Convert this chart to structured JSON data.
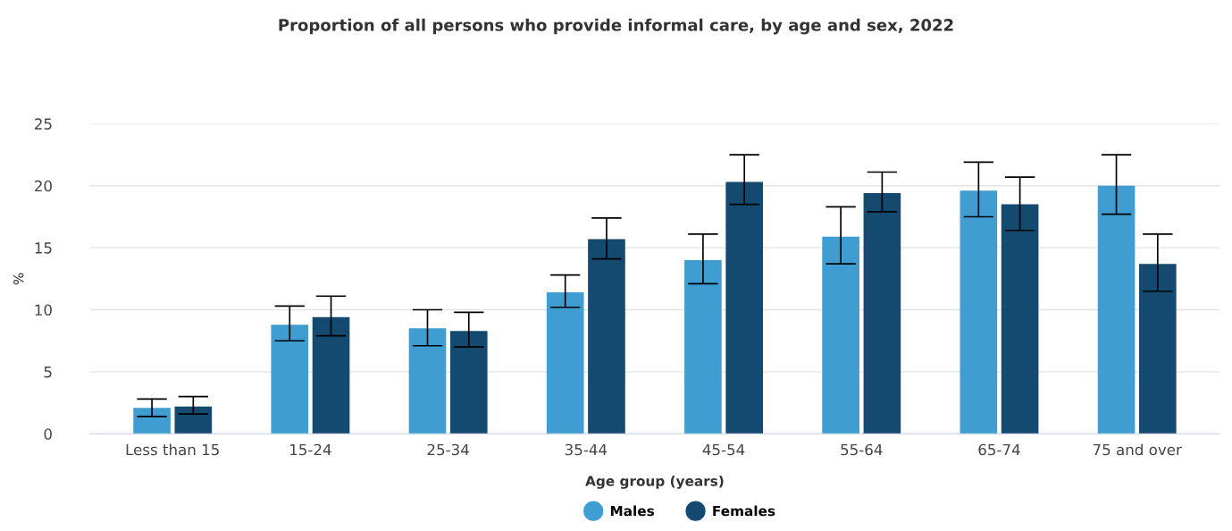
{
  "chart_data": {
    "type": "bar",
    "title": "Proportion of all persons who provide informal care, by age and sex, 2022",
    "xlabel": "Age group (years)",
    "ylabel": "%",
    "categories": [
      "Less than 15",
      "15-24",
      "25-34",
      "35-44",
      "45-54",
      "55-64",
      "65-74",
      "75 and over"
    ],
    "series": [
      {
        "name": "Males",
        "color": "#3f9dd1",
        "values": [
          2.1,
          8.8,
          8.5,
          11.4,
          14.0,
          15.9,
          19.6,
          20.0
        ],
        "errors": [
          [
            1.4,
            2.8
          ],
          [
            7.5,
            10.3
          ],
          [
            7.1,
            10.0
          ],
          [
            10.2,
            12.8
          ],
          [
            12.1,
            16.1
          ],
          [
            13.7,
            18.3
          ],
          [
            17.5,
            21.9
          ],
          [
            17.7,
            22.5
          ]
        ]
      },
      {
        "name": "Females",
        "color": "#144a70",
        "values": [
          2.2,
          9.4,
          8.3,
          15.7,
          20.3,
          19.4,
          18.5,
          13.7
        ],
        "errors": [
          [
            1.6,
            3.0
          ],
          [
            7.9,
            11.1
          ],
          [
            7.0,
            9.8
          ],
          [
            14.1,
            17.4
          ],
          [
            18.5,
            22.5
          ],
          [
            17.9,
            21.1
          ],
          [
            16.4,
            20.7
          ],
          [
            11.5,
            16.1
          ]
        ]
      }
    ],
    "ylim": [
      0,
      25
    ],
    "yticks": [
      0,
      5,
      10,
      15,
      20,
      25
    ],
    "grid": "y",
    "legend": "bottom"
  }
}
